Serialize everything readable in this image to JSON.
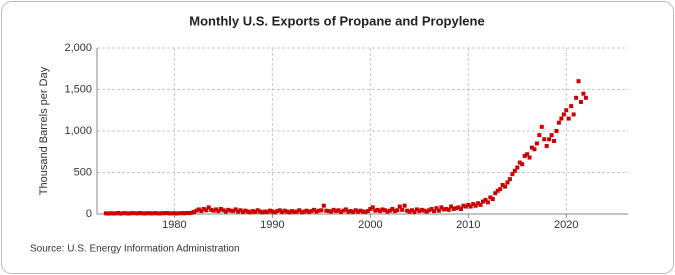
{
  "chart_data": {
    "type": "scatter",
    "title": "Monthly U.S. Exports of Propane and Propylene",
    "y_label": "Thousand Barrels per Day",
    "source": "Source: U.S. Energy Information Administration",
    "xlim": [
      1972.1,
      2026.3
    ],
    "xticks": [
      1980,
      1990,
      2000,
      2010,
      2020
    ],
    "ylim": [
      0,
      2000
    ],
    "yticks": [
      0,
      500,
      {
        "value": 1000,
        "label": "1,000"
      },
      {
        "value": 1500,
        "label": "1,500"
      },
      {
        "value": 2000,
        "label": "2,000"
      }
    ],
    "grid": true,
    "series": [
      {
        "color": "#cc0000",
        "x": [
          1973,
          1973.25,
          1973.5,
          1973.75,
          1974,
          1974.25,
          1974.5,
          1974.75,
          1975,
          1975.25,
          1975.5,
          1975.75,
          1976,
          1976.25,
          1976.5,
          1976.75,
          1977,
          1977.25,
          1977.5,
          1977.75,
          1978,
          1978.25,
          1978.5,
          1978.75,
          1979,
          1979.25,
          1979.5,
          1979.75,
          1980,
          1980.25,
          1980.5,
          1980.75,
          1981,
          1981.25,
          1981.5,
          1981.75,
          1982,
          1982.25,
          1982.5,
          1982.75,
          1983,
          1983.25,
          1983.5,
          1983.75,
          1984,
          1984.25,
          1984.5,
          1984.75,
          1985,
          1985.25,
          1985.5,
          1985.75,
          1986,
          1986.25,
          1986.5,
          1986.75,
          1987,
          1987.25,
          1987.5,
          1987.75,
          1988,
          1988.25,
          1988.5,
          1988.75,
          1989,
          1989.25,
          1989.5,
          1989.75,
          1990,
          1990.25,
          1990.5,
          1990.75,
          1991,
          1991.25,
          1991.5,
          1991.75,
          1992,
          1992.25,
          1992.5,
          1992.75,
          1993,
          1993.25,
          1993.5,
          1993.75,
          1994,
          1994.25,
          1994.5,
          1994.75,
          1995,
          1995.25,
          1995.5,
          1995.75,
          1996,
          1996.25,
          1996.5,
          1996.75,
          1997,
          1997.25,
          1997.5,
          1997.75,
          1998,
          1998.25,
          1998.5,
          1998.75,
          1999,
          1999.25,
          1999.5,
          1999.75,
          2000,
          2000.25,
          2000.5,
          2000.75,
          2001,
          2001.25,
          2001.5,
          2001.75,
          2002,
          2002.25,
          2002.5,
          2002.75,
          2003,
          2003.25,
          2003.5,
          2003.75,
          2004,
          2004.25,
          2004.5,
          2004.75,
          2005,
          2005.25,
          2005.5,
          2005.75,
          2006,
          2006.25,
          2006.5,
          2006.75,
          2007,
          2007.25,
          2007.5,
          2007.75,
          2008,
          2008.25,
          2008.5,
          2008.75,
          2009,
          2009.25,
          2009.5,
          2009.75,
          2010,
          2010.25,
          2010.5,
          2010.75,
          2011,
          2011.25,
          2011.5,
          2011.75,
          2012,
          2012.25,
          2012.5,
          2012.75,
          2013,
          2013.25,
          2013.5,
          2013.75,
          2014,
          2014.25,
          2014.5,
          2014.75,
          2015,
          2015.25,
          2015.5,
          2015.75,
          2016,
          2016.25,
          2016.5,
          2016.75,
          2017,
          2017.25,
          2017.5,
          2017.75,
          2018,
          2018.25,
          2018.5,
          2018.75,
          2019,
          2019.25,
          2019.5,
          2019.75,
          2020,
          2020.25,
          2020.5,
          2020.75,
          2021,
          2021.25,
          2021.5,
          2021.75,
          2022
        ],
        "values": [
          8,
          5,
          10,
          6,
          7,
          12,
          5,
          9,
          10,
          6,
          8,
          11,
          9,
          7,
          12,
          8,
          6,
          10,
          9,
          7,
          11,
          8,
          6,
          10,
          9,
          12,
          7,
          8,
          10,
          6,
          9,
          11,
          8,
          12,
          10,
          15,
          25,
          40,
          55,
          35,
          60,
          45,
          80,
          50,
          40,
          55,
          35,
          60,
          45,
          30,
          50,
          40,
          35,
          55,
          30,
          45,
          25,
          40,
          30,
          20,
          35,
          25,
          45,
          30,
          20,
          30,
          25,
          40,
          30,
          20,
          35,
          45,
          25,
          40,
          30,
          20,
          35,
          25,
          30,
          45,
          20,
          30,
          40,
          25,
          35,
          50,
          30,
          40,
          45,
          100,
          40,
          35,
          30,
          50,
          35,
          45,
          25,
          40,
          55,
          30,
          35,
          25,
          45,
          30,
          40,
          30,
          25,
          35,
          60,
          80,
          40,
          50,
          35,
          55,
          45,
          30,
          40,
          60,
          35,
          45,
          90,
          50,
          100,
          40,
          30,
          45,
          25,
          55,
          35,
          50,
          40,
          30,
          45,
          60,
          35,
          70,
          40,
          80,
          55,
          60,
          50,
          90,
          60,
          70,
          80,
          60,
          100,
          90,
          110,
          90,
          120,
          100,
          130,
          110,
          150,
          170,
          140,
          200,
          180,
          250,
          280,
          300,
          350,
          330,
          380,
          420,
          480,
          520,
          560,
          620,
          600,
          700,
          720,
          680,
          800,
          780,
          850,
          950,
          1050,
          900,
          820,
          900,
          950,
          880,
          1000,
          1100,
          1150,
          1200,
          1250,
          1150,
          1300,
          1200,
          1400,
          1600,
          1350,
          1450,
          1400
        ]
      }
    ]
  }
}
